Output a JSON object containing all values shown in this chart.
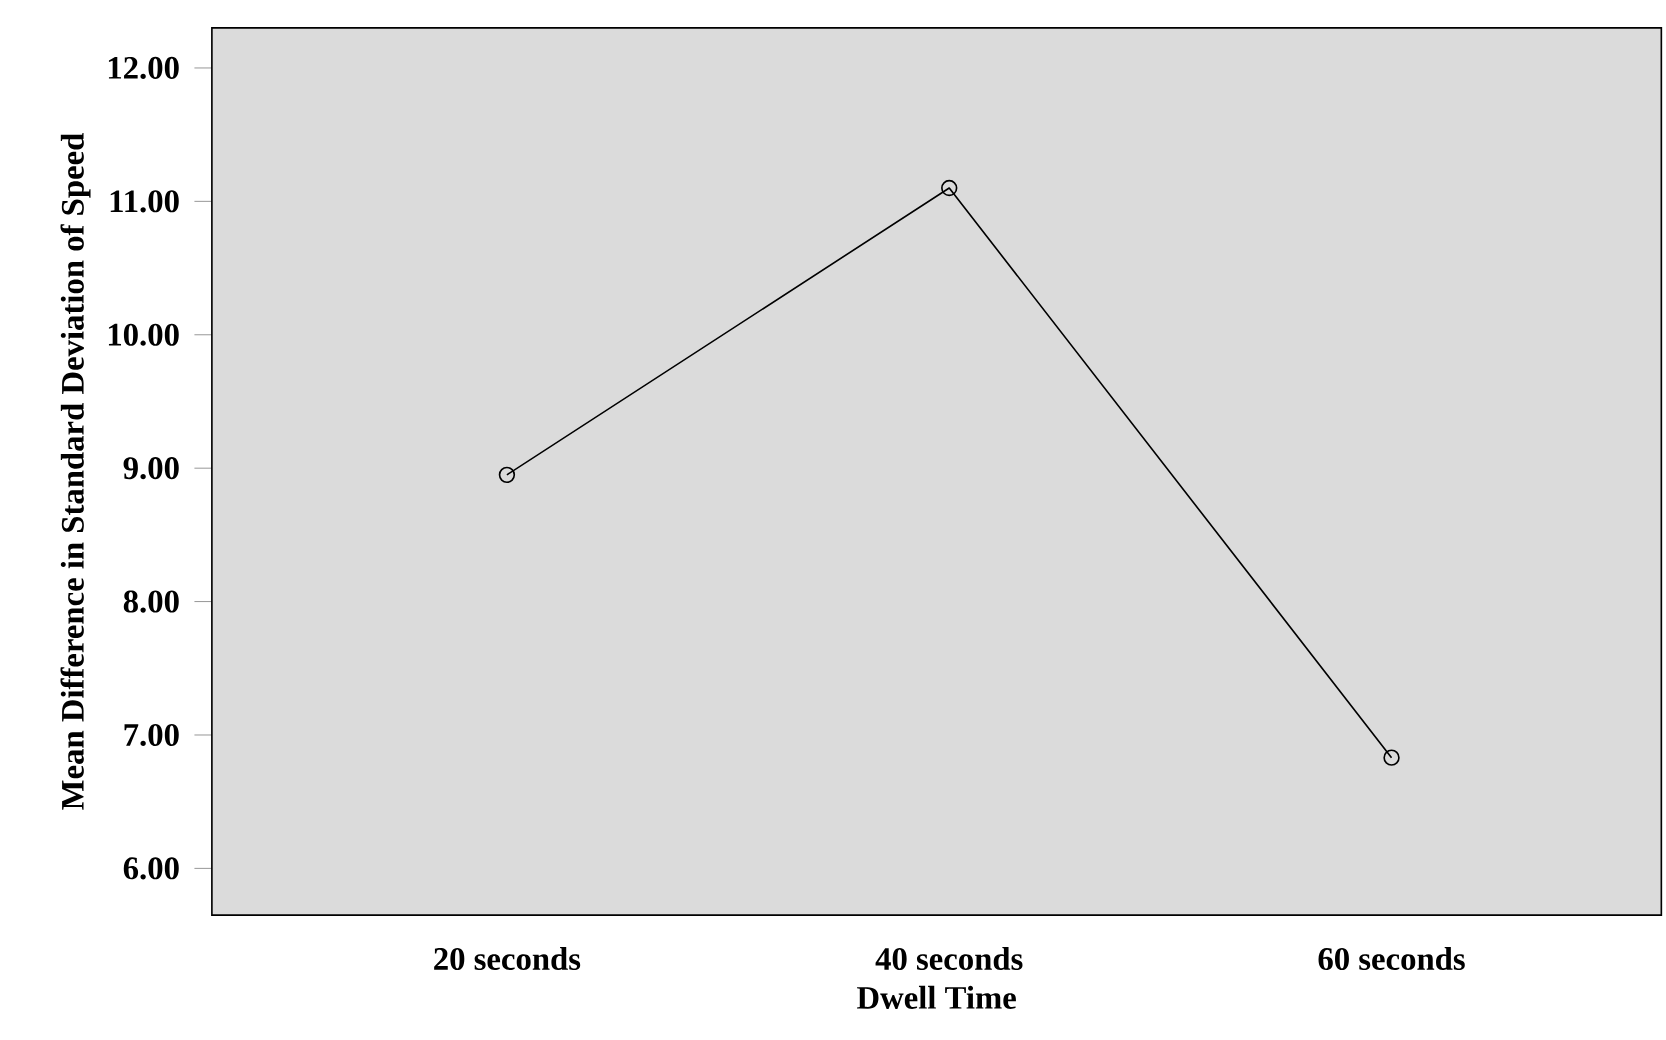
{
  "chart_data": {
    "type": "line",
    "xlabel": "Dwell Time",
    "ylabel": "Mean Difference in Standard Deviation of Speed",
    "categories": [
      "20 seconds",
      "40 seconds",
      "60 seconds"
    ],
    "values": [
      8.95,
      11.1,
      6.83
    ],
    "color": "#000000",
    "marker": "circle",
    "line_style": "solid",
    "ylim": [
      5.65,
      12.3
    ],
    "yticks": [
      {
        "value": 6,
        "label": "6.00"
      },
      {
        "value": 7,
        "label": "7.00"
      },
      {
        "value": 8,
        "label": "8.00"
      },
      {
        "value": 9,
        "label": "9.00"
      },
      {
        "value": 10,
        "label": "10.00"
      },
      {
        "value": 11,
        "label": "11.00"
      },
      {
        "value": 12,
        "label": "12.00"
      }
    ],
    "grid": false
  }
}
